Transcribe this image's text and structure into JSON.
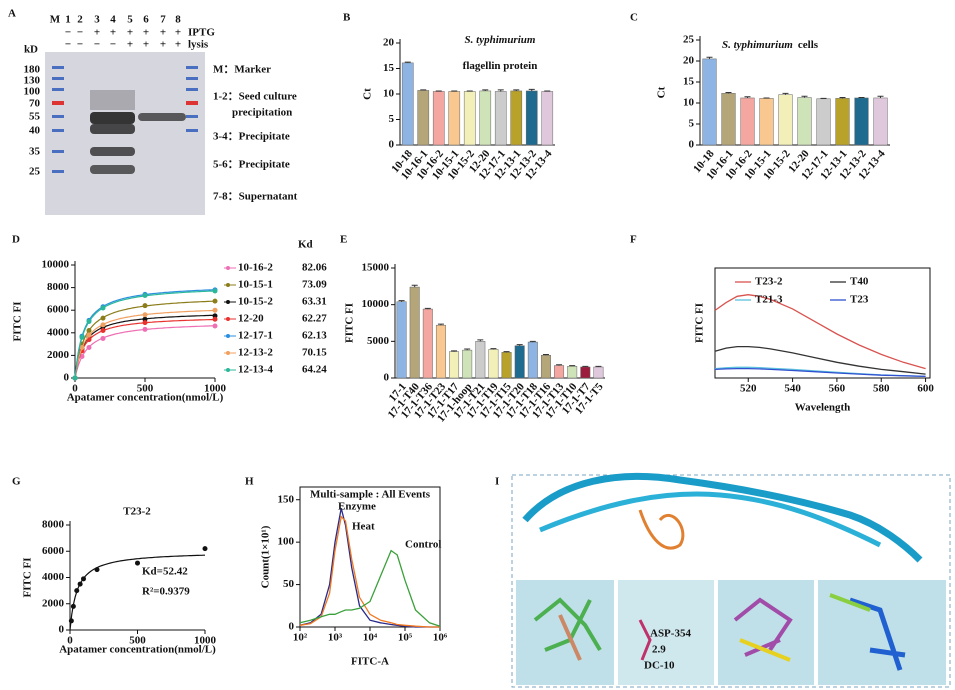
{
  "gel": {
    "label": "A",
    "unit": "kD",
    "lanes": [
      "M",
      "1",
      "2",
      "3",
      "4",
      "5",
      "6",
      "7",
      "8"
    ],
    "rows": [
      {
        "name": "IPTG",
        "signs": [
          "−",
          "−",
          "+",
          "+",
          "+",
          "+",
          "+",
          "+"
        ]
      },
      {
        "name": "lysis",
        "signs": [
          "−",
          "−",
          "−",
          "−",
          "+",
          "+",
          "+",
          "+"
        ]
      }
    ],
    "markers": [
      180,
      130,
      100,
      70,
      55,
      40,
      35,
      25
    ],
    "legend": [
      [
        "M：Marker"
      ],
      [
        "1-2：Seed culture",
        "precipitation"
      ],
      [
        "3-4：Precipitate"
      ],
      [
        "5-6：Precipitate"
      ],
      [
        "7-8：Supernatant"
      ]
    ]
  },
  "structure": {
    "label": "I",
    "labels": [
      "ASP-354",
      "2.9",
      "DC-10"
    ]
  },
  "chart_data": [
    {
      "type": "bar",
      "label": "B",
      "title": "S. typhimurium",
      "subtitle": "flagellin protein",
      "title_layout": "stacked",
      "ylabel": "Ct",
      "categories": [
        "10-18",
        "10-16-1",
        "10-16-2",
        "10-15-1",
        "10-15-2",
        "12-20",
        "12-17-1",
        "12-13-1",
        "12-13-2",
        "12-13-4"
      ],
      "values": [
        16.1,
        10.7,
        10.5,
        10.5,
        10.5,
        10.6,
        10.5,
        10.6,
        10.6,
        10.5
      ],
      "errors": [
        0.15,
        0.1,
        0.1,
        0.1,
        0.1,
        0.2,
        0.3,
        0.2,
        0.3,
        0.1
      ],
      "colors": [
        "#8db4e2",
        "#b5a67a",
        "#f4a6a0",
        "#f9c890",
        "#f2f0b8",
        "#cfe3b8",
        "#cccccc",
        "#b8a22a",
        "#1f6a8f",
        "#e0c8dc"
      ],
      "ylim": [
        0,
        20
      ],
      "yticks": [
        0,
        5,
        10,
        15,
        20
      ]
    },
    {
      "type": "bar",
      "label": "C",
      "title": "S. typhimurium",
      "subtitle": "cells",
      "title_layout": "inline",
      "ylabel": "Ct",
      "categories": [
        "10-18",
        "10-16-1",
        "10-16-2",
        "10-15-1",
        "10-15-2",
        "12-20",
        "12-17-1",
        "12-13-1",
        "12-13-2",
        "12-13-4"
      ],
      "values": [
        20.5,
        12.3,
        11.2,
        11.1,
        12.0,
        11.3,
        11.0,
        11.1,
        11.2,
        11.2
      ],
      "errors": [
        0.4,
        0.2,
        0.3,
        0.1,
        0.3,
        0.3,
        0.1,
        0.2,
        0.1,
        0.4
      ],
      "colors": [
        "#8db4e2",
        "#b5a67a",
        "#f4a6a0",
        "#f9c890",
        "#f2f0b8",
        "#cfe3b8",
        "#cccccc",
        "#b8a22a",
        "#1f6a8f",
        "#e0c8dc"
      ],
      "ylim": [
        0,
        25
      ],
      "yticks": [
        0,
        5,
        10,
        15,
        20,
        25
      ]
    },
    {
      "type": "binding",
      "label": "D",
      "ylabel": "FITC FI",
      "xlabel": "Apatamer concentration(nmol/L)",
      "legend_title": "Kd",
      "x": [
        0,
        50,
        100,
        200,
        500,
        1000
      ],
      "xlim": [
        0,
        1000
      ],
      "xticks": [
        0,
        500,
        1000
      ],
      "ylim": [
        0,
        10000
      ],
      "yticks": [
        0,
        2000,
        4000,
        6000,
        8000,
        10000
      ],
      "series": [
        {
          "name": "10-16-2",
          "kd": 82.06,
          "bmax": 5000,
          "color": "#ee6fb4",
          "values": [
            0,
            1900,
            2700,
            3500,
            4300,
            4600
          ]
        },
        {
          "name": "10-15-1",
          "kd": 73.09,
          "bmax": 7300,
          "color": "#8b7d1a",
          "values": [
            0,
            3000,
            4200,
            5300,
            6400,
            6800
          ]
        },
        {
          "name": "10-15-2",
          "kd": 63.31,
          "bmax": 5900,
          "color": "#111111",
          "values": [
            0,
            2600,
            3600,
            4500,
            5200,
            5500
          ]
        },
        {
          "name": "12-20",
          "kd": 62.27,
          "bmax": 5500,
          "color": "#e8322f",
          "values": [
            0,
            2400,
            3400,
            4200,
            4900,
            5200
          ]
        },
        {
          "name": "12-17-1",
          "kd": 62.13,
          "bmax": 8300,
          "color": "#2b8fe0",
          "values": [
            0,
            3700,
            5100,
            6300,
            7400,
            7800
          ]
        },
        {
          "name": "12-13-2",
          "kd": 70.15,
          "bmax": 6400,
          "color": "#f0a060",
          "values": [
            0,
            2700,
            3800,
            4700,
            5600,
            6000
          ]
        },
        {
          "name": "12-13-4",
          "kd": 64.24,
          "bmax": 8200,
          "color": "#2bb89a",
          "values": [
            0,
            3600,
            5000,
            6200,
            7300,
            7700
          ]
        }
      ]
    },
    {
      "type": "bar",
      "label": "E",
      "ylabel": "FITC FI",
      "categories": [
        "17-1",
        "17-1-T40",
        "17-1-T36",
        "17-1-T23",
        "17-1-T17",
        "17-1-hoop",
        "17-1-T21",
        "17-1-T19",
        "17-1-T15",
        "17-1-T20",
        "17-1-T18",
        "17-1-T16",
        "17-1-T13",
        "17-1-T10",
        "17-1-T7",
        "17-1-T5"
      ],
      "values": [
        10400,
        12400,
        9400,
        7200,
        3600,
        3800,
        5000,
        3900,
        3500,
        4400,
        4900,
        3100,
        1700,
        1600,
        1500,
        1500
      ],
      "errors": [
        150,
        250,
        100,
        150,
        100,
        150,
        200,
        100,
        100,
        150,
        100,
        100,
        100,
        80,
        80,
        80
      ],
      "colors": [
        "#8db4e2",
        "#b5a67a",
        "#f4a6a0",
        "#f9c890",
        "#f2f0b8",
        "#cfe3b8",
        "#cccccc",
        "#f2f0b8",
        "#b8a22a",
        "#1f6a8f",
        "#8db4e2",
        "#b5a67a",
        "#f4a6a0",
        "#cfe3b8",
        "#9b1c3c",
        "#e0c8dc"
      ],
      "ylim": [
        0,
        15000
      ],
      "yticks": [
        0,
        5000,
        10000,
        15000
      ]
    },
    {
      "type": "line",
      "label": "F",
      "ylabel": "FITC FI",
      "xlabel": "Wavelength",
      "frame": true,
      "legend": "line",
      "x": [
        505,
        510,
        515,
        520,
        525,
        530,
        540,
        550,
        560,
        570,
        580,
        590,
        600
      ],
      "xlim": [
        505,
        602
      ],
      "xticks": [
        520,
        540,
        560,
        580,
        600
      ],
      "ylim": [
        0,
        700
      ],
      "series": [
        {
          "name": "T23-2",
          "color": "#d9534f",
          "values": [
            430,
            480,
            520,
            530,
            520,
            500,
            440,
            360,
            280,
            210,
            150,
            100,
            60
          ]
        },
        {
          "name": "T40",
          "color": "#333333",
          "values": [
            170,
            190,
            200,
            200,
            195,
            185,
            160,
            130,
            100,
            75,
            55,
            40,
            25
          ]
        },
        {
          "name": "T21-3",
          "color": "#5bc0de",
          "values": [
            60,
            65,
            68,
            68,
            66,
            62,
            55,
            45,
            36,
            28,
            20,
            15,
            10
          ]
        },
        {
          "name": "T23",
          "color": "#3050d0",
          "values": [
            55,
            58,
            60,
            60,
            58,
            55,
            48,
            40,
            32,
            25,
            18,
            14,
            10
          ]
        }
      ]
    },
    {
      "type": "binding",
      "label": "G",
      "title": "T23-2",
      "ylabel": "FITC FI",
      "xlabel": "Apatamer concentration(nmol/L)",
      "annotations": [
        "Kd=52.42",
        "R²=0.9379"
      ],
      "x": [
        10,
        25,
        50,
        75,
        100,
        200,
        500,
        1000
      ],
      "values": [
        700,
        1800,
        3000,
        3500,
        3900,
        4600,
        5100,
        6200
      ],
      "color": "#111111",
      "bmax": 6000,
      "kd": 52.42,
      "xlim": [
        0,
        1000
      ],
      "xticks": [
        0,
        500,
        1000
      ],
      "ylim": [
        0,
        8000
      ],
      "yticks": [
        0,
        2000,
        4000,
        6000,
        8000
      ]
    },
    {
      "type": "line",
      "label": "H",
      "title": "Multi-sample : All Events",
      "ylabel": "Count(1×10¹)",
      "xlabel": "FITC-A",
      "frame": true,
      "legend": "label",
      "xscale": "log",
      "x": [
        100,
        200,
        400,
        700,
        1000,
        1500,
        2000,
        3000,
        5000,
        10000,
        20000,
        40000,
        60000,
        100000,
        200000,
        500000,
        1000000
      ],
      "xlim": [
        100,
        1000000
      ],
      "xticks": [
        {
          "value": 100,
          "label": "10²"
        },
        {
          "value": 1000,
          "label": "10³"
        },
        {
          "value": 10000,
          "label": "10⁴"
        },
        {
          "value": 100000,
          "label": "10⁵"
        },
        {
          "value": 1000000,
          "label": "10⁶"
        }
      ],
      "ylim": [
        0,
        165
      ],
      "yticks": [
        0,
        50,
        100,
        150
      ],
      "series": [
        {
          "name": "Enzyme",
          "color": "#2a2a8c",
          "values": [
            2,
            5,
            15,
            50,
            100,
            140,
            120,
            70,
            25,
            8,
            5,
            3,
            2,
            1,
            0,
            0,
            0
          ]
        },
        {
          "name": "Heat",
          "color": "#f07820",
          "values": [
            2,
            4,
            12,
            40,
            90,
            130,
            125,
            80,
            35,
            15,
            8,
            5,
            3,
            2,
            1,
            0,
            0
          ]
        },
        {
          "name": "Control",
          "color": "#3aa03a",
          "values": [
            5,
            8,
            12,
            15,
            15,
            18,
            20,
            20,
            22,
            30,
            60,
            90,
            85,
            55,
            20,
            5,
            1
          ]
        }
      ]
    }
  ]
}
